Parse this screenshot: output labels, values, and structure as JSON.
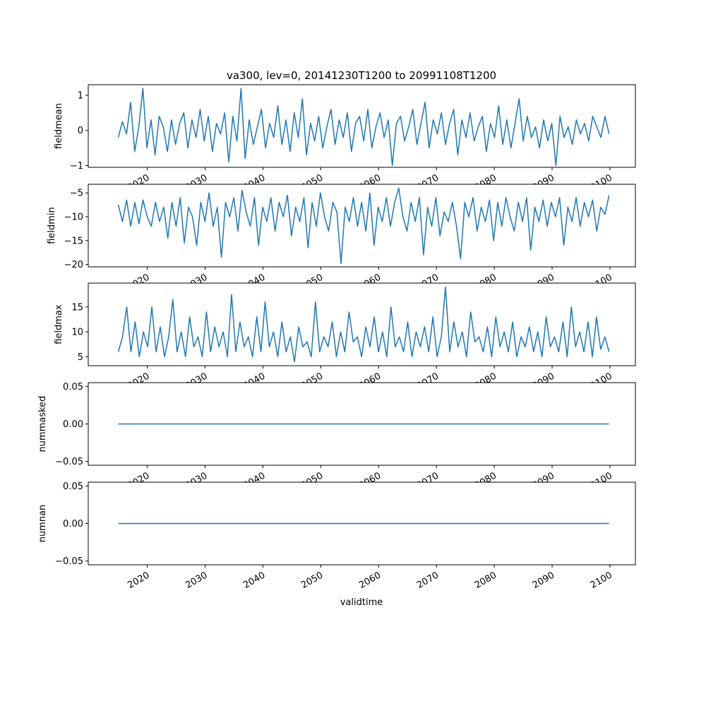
{
  "chart_data": {
    "type": "line",
    "title": "va300, lev=0, 20141230T1200 to 20991108T1200",
    "xlabel": "validtime",
    "x_range_years": [
      2015.0,
      2099.85
    ],
    "xlim": [
      2009.8,
      2104.4
    ],
    "x_ticks": [
      2020,
      2030,
      2040,
      2050,
      2060,
      2070,
      2080,
      2090,
      2100
    ],
    "x_tick_labels": [
      "2020",
      "2030",
      "2040",
      "2050",
      "2060",
      "2070",
      "2080",
      "2090",
      "2100"
    ],
    "line_color": "#1f77b4",
    "panels": [
      {
        "ylabel": "fieldmean",
        "ylim": [
          -1.05,
          1.3
        ],
        "y_ticks": [
          -1,
          0,
          1
        ],
        "y_tick_labels": [
          "−1",
          "0",
          "1"
        ],
        "values": [
          -0.2,
          0.25,
          -0.1,
          0.8,
          -0.6,
          0.1,
          1.2,
          -0.5,
          0.3,
          -0.7,
          0.4,
          0.1,
          -0.6,
          0.3,
          -0.4,
          0.2,
          0.5,
          -0.5,
          0.3,
          -0.2,
          0.6,
          -0.3,
          0.4,
          -0.6,
          0.2,
          -0.1,
          0.5,
          -0.9,
          0.4,
          -0.3,
          1.2,
          -0.8,
          0.3,
          -0.4,
          0.1,
          0.6,
          -0.5,
          0.2,
          -0.2,
          0.7,
          -0.4,
          0.3,
          -0.6,
          0.5,
          -0.2,
          0.9,
          -0.7,
          0.2,
          -0.3,
          0.4,
          -0.5,
          0.1,
          0.6,
          -0.4,
          0.3,
          -0.2,
          0.5,
          -0.6,
          0.2,
          0.4,
          -0.3,
          0.6,
          -0.5,
          0.1,
          0.5,
          -0.2,
          0.3,
          -1.0,
          0.2,
          0.4,
          -0.3,
          0.1,
          0.6,
          -0.4,
          0.2,
          0.8,
          -0.5,
          0.3,
          -0.1,
          0.5,
          -0.4,
          0.2,
          0.6,
          -0.7,
          0.3,
          -0.2,
          0.5,
          -0.3,
          0.1,
          0.4,
          -0.6,
          0.2,
          -0.2,
          0.7,
          -0.4,
          0.3,
          -0.5,
          0.2,
          0.9,
          -0.3,
          0.4,
          -0.2,
          0.1,
          -0.5,
          0.3,
          -0.3,
          0.2,
          -1.0,
          0.4,
          -0.2,
          0.1,
          -0.4,
          0.3,
          -0.1,
          0.2,
          -0.3,
          0.4,
          0.1,
          -0.2,
          0.4,
          -0.1
        ]
      },
      {
        "ylabel": "fieldmin",
        "ylim": [
          -20.5,
          -3.2
        ],
        "y_ticks": [
          -20,
          -15,
          -10,
          -5
        ],
        "y_tick_labels": [
          "−20",
          "−15",
          "−10",
          "−5"
        ],
        "values": [
          -7.5,
          -11,
          -6.5,
          -12,
          -7,
          -11.5,
          -6.5,
          -10,
          -12,
          -7,
          -11,
          -8,
          -14.5,
          -7,
          -12,
          -6,
          -15.5,
          -8,
          -10,
          -16,
          -7,
          -11,
          -5,
          -12,
          -8,
          -18.5,
          -7,
          -10,
          -6,
          -13,
          -4.5,
          -9,
          -12,
          -6,
          -16,
          -8,
          -11,
          -6,
          -13,
          -7,
          -10,
          -5.5,
          -14,
          -8,
          -11,
          -6,
          -16.5,
          -7,
          -12,
          -5,
          -10,
          -13,
          -7,
          -9,
          -19.8,
          -8,
          -11,
          -6,
          -12,
          -7,
          -13,
          -5,
          -16,
          -8,
          -11,
          -6,
          -12,
          -7,
          -4,
          -10,
          -13,
          -7,
          -11,
          -6,
          -18,
          -8,
          -12,
          -6,
          -14,
          -9,
          -11,
          -7,
          -12,
          -18.8,
          -7,
          -10,
          -6,
          -13,
          -8,
          -11,
          -6.5,
          -15,
          -7,
          -12,
          -6,
          -10,
          -13,
          -7,
          -11,
          -6,
          -17,
          -8,
          -11,
          -6.5,
          -12,
          -7,
          -10,
          -6,
          -16,
          -8,
          -11,
          -6,
          -12,
          -7,
          -10,
          -6.5,
          -13,
          -8,
          -9.5,
          -5.5
        ]
      },
      {
        "ylabel": "fieldmax",
        "ylim": [
          3.2,
          19.8
        ],
        "y_ticks": [
          5,
          10,
          15
        ],
        "y_tick_labels": [
          "5",
          "10",
          "15"
        ],
        "values": [
          6,
          9,
          15,
          6,
          12,
          5,
          10,
          7,
          15,
          6,
          11,
          5,
          9,
          16.5,
          6,
          10,
          5,
          13,
          7,
          9,
          5,
          14,
          6,
          11,
          7,
          10,
          5,
          17.5,
          6,
          12,
          7,
          9,
          5,
          13,
          6,
          16,
          7,
          10,
          5,
          12,
          6,
          9,
          4,
          11,
          7,
          8,
          5,
          16,
          6,
          9,
          7,
          12,
          5,
          10,
          6,
          14,
          8,
          9,
          5,
          11,
          7,
          13,
          6,
          10,
          5,
          15,
          7,
          9,
          6,
          12,
          5,
          10,
          7,
          11,
          6,
          13,
          5,
          9,
          19,
          6,
          12,
          7,
          10,
          5,
          14,
          8,
          9,
          6,
          11,
          5,
          13,
          7,
          10,
          6,
          12,
          5,
          9,
          7,
          11,
          6,
          10,
          5,
          13,
          7,
          9,
          6,
          12,
          5,
          15,
          7,
          10,
          6,
          12,
          5,
          13,
          6.5,
          9,
          6
        ]
      },
      {
        "ylabel": "nummasked",
        "ylim": [
          -0.055,
          0.055
        ],
        "y_ticks": [
          -0.05,
          0.0,
          0.05
        ],
        "y_tick_labels": [
          "−0.05",
          "0.00",
          "0.05"
        ],
        "values": [
          0,
          0
        ]
      },
      {
        "ylabel": "numnan",
        "ylim": [
          -0.055,
          0.055
        ],
        "y_ticks": [
          -0.05,
          0.0,
          0.05
        ],
        "y_tick_labels": [
          "−0.05",
          "0.00",
          "0.05"
        ],
        "values": [
          0,
          0
        ]
      }
    ]
  }
}
